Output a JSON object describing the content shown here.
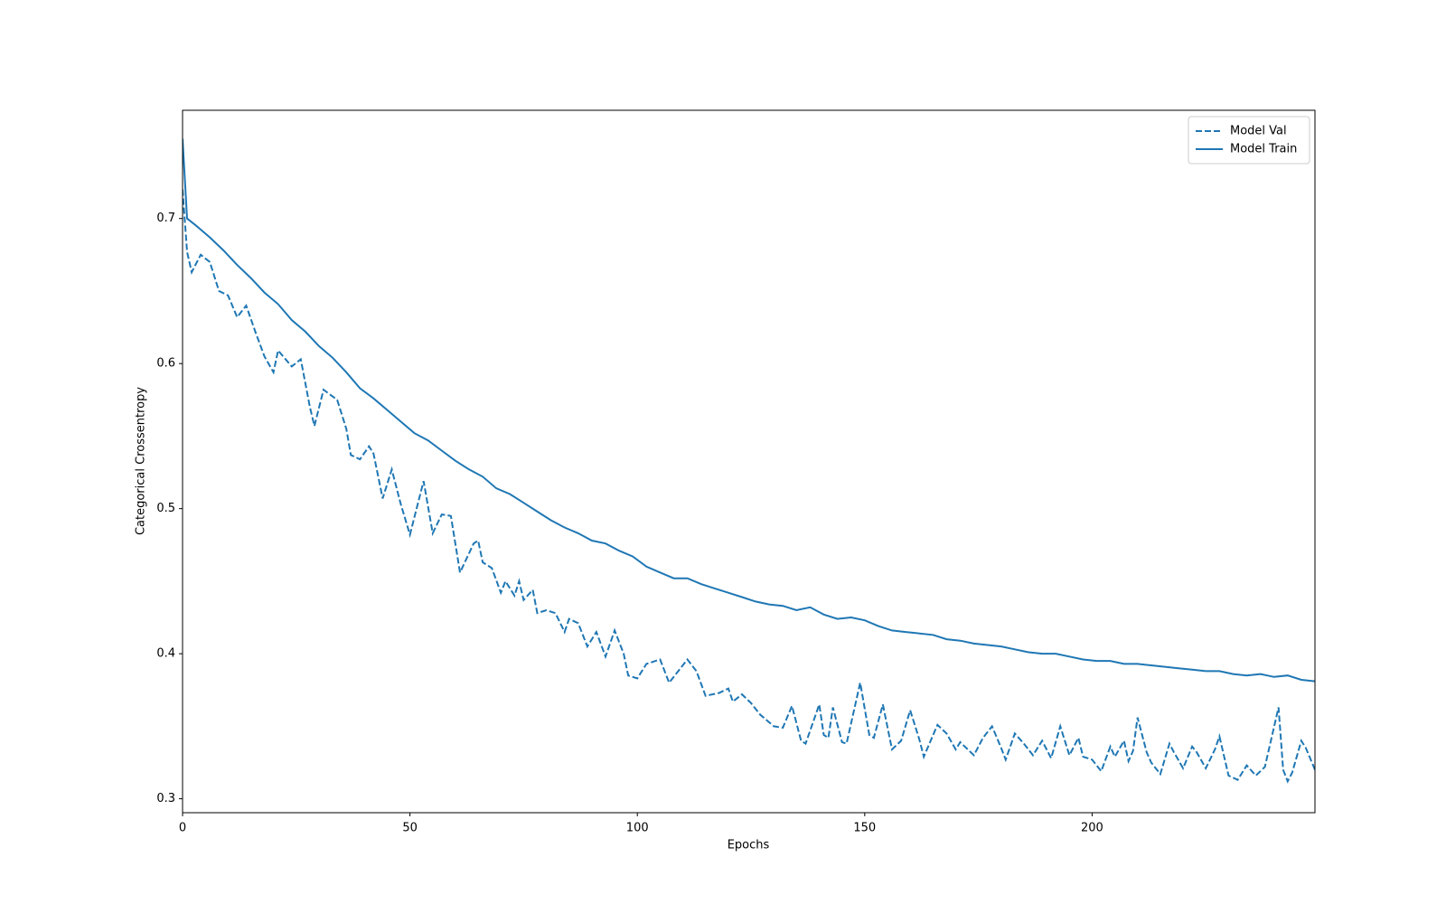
{
  "chart_data": {
    "type": "line",
    "xlabel": "Epochs",
    "ylabel": "Categorical Crossentropy",
    "xlim": [
      0,
      249
    ],
    "ylim": [
      0.2904,
      0.7746
    ],
    "xticks": [
      0,
      50,
      100,
      150,
      200
    ],
    "yticks": [
      0.3,
      0.4,
      0.5,
      0.6,
      0.7
    ],
    "legend": "upper right",
    "series": [
      {
        "name": "Model Val",
        "color": "#1f77b4",
        "linestyle": "dashed",
        "x": [
          0,
          1,
          2,
          4,
          6,
          8,
          10,
          12,
          14,
          16,
          18,
          20,
          21,
          24,
          26,
          28,
          29,
          31,
          34,
          36,
          37,
          39,
          41,
          42,
          44,
          46,
          48,
          50,
          53,
          55,
          57,
          59,
          61,
          64,
          65,
          66,
          68,
          70,
          71,
          73,
          74,
          75,
          77,
          78,
          80,
          82,
          84,
          85,
          87,
          89,
          91,
          93,
          95,
          97,
          98,
          100,
          102,
          105,
          107,
          109,
          111,
          113,
          115,
          118,
          120,
          121,
          123,
          125,
          127,
          130,
          132,
          134,
          136,
          137,
          140,
          141,
          142,
          143,
          145,
          146,
          149,
          151,
          152,
          154,
          156,
          158,
          160,
          162,
          163,
          166,
          168,
          170,
          171,
          174,
          176,
          178,
          180,
          181,
          183,
          185,
          187,
          189,
          191,
          193,
          195,
          197,
          198,
          200,
          202,
          204,
          205,
          207,
          208,
          209,
          210,
          212,
          213,
          215,
          217,
          218,
          220,
          222,
          223,
          225,
          227,
          228,
          230,
          232,
          234,
          236,
          238,
          241,
          242,
          243,
          244,
          246,
          247,
          249
        ],
        "values": [
          0.72,
          0.677,
          0.663,
          0.675,
          0.67,
          0.65,
          0.647,
          0.632,
          0.64,
          0.622,
          0.605,
          0.594,
          0.609,
          0.598,
          0.603,
          0.57,
          0.557,
          0.582,
          0.575,
          0.555,
          0.537,
          0.534,
          0.543,
          0.538,
          0.507,
          0.527,
          0.503,
          0.482,
          0.519,
          0.483,
          0.496,
          0.495,
          0.456,
          0.476,
          0.478,
          0.463,
          0.459,
          0.442,
          0.45,
          0.44,
          0.45,
          0.437,
          0.444,
          0.428,
          0.43,
          0.428,
          0.415,
          0.424,
          0.421,
          0.405,
          0.415,
          0.398,
          0.416,
          0.4,
          0.385,
          0.383,
          0.393,
          0.396,
          0.38,
          0.388,
          0.396,
          0.388,
          0.371,
          0.373,
          0.376,
          0.367,
          0.372,
          0.366,
          0.358,
          0.35,
          0.349,
          0.364,
          0.34,
          0.338,
          0.365,
          0.344,
          0.342,
          0.363,
          0.339,
          0.338,
          0.38,
          0.344,
          0.342,
          0.365,
          0.334,
          0.34,
          0.361,
          0.341,
          0.329,
          0.351,
          0.345,
          0.334,
          0.339,
          0.33,
          0.342,
          0.35,
          0.335,
          0.327,
          0.345,
          0.338,
          0.33,
          0.34,
          0.328,
          0.35,
          0.33,
          0.342,
          0.329,
          0.327,
          0.319,
          0.336,
          0.329,
          0.34,
          0.326,
          0.333,
          0.356,
          0.332,
          0.325,
          0.317,
          0.338,
          0.332,
          0.321,
          0.336,
          0.332,
          0.321,
          0.334,
          0.343,
          0.316,
          0.313,
          0.323,
          0.316,
          0.322,
          0.363,
          0.32,
          0.312,
          0.318,
          0.34,
          0.335,
          0.32
        ]
      },
      {
        "name": "Model Train",
        "color": "#1f77b4",
        "linestyle": "solid",
        "x": [
          0,
          1,
          3,
          6,
          9,
          12,
          15,
          18,
          21,
          24,
          27,
          30,
          33,
          36,
          39,
          42,
          45,
          48,
          51,
          54,
          57,
          60,
          63,
          66,
          69,
          72,
          75,
          78,
          81,
          84,
          87,
          90,
          93,
          96,
          99,
          102,
          105,
          108,
          111,
          114,
          117,
          120,
          123,
          126,
          129,
          132,
          135,
          138,
          141,
          144,
          147,
          150,
          153,
          156,
          159,
          162,
          165,
          168,
          171,
          174,
          177,
          180,
          183,
          186,
          189,
          192,
          195,
          198,
          201,
          204,
          207,
          210,
          213,
          216,
          219,
          222,
          225,
          228,
          231,
          234,
          237,
          240,
          243,
          246,
          249
        ],
        "values": [
          0.755,
          0.7,
          0.695,
          0.687,
          0.678,
          0.668,
          0.659,
          0.649,
          0.641,
          0.63,
          0.622,
          0.612,
          0.604,
          0.594,
          0.583,
          0.576,
          0.568,
          0.56,
          0.552,
          0.547,
          0.54,
          0.533,
          0.527,
          0.522,
          0.514,
          0.51,
          0.504,
          0.498,
          0.492,
          0.487,
          0.483,
          0.478,
          0.476,
          0.471,
          0.467,
          0.46,
          0.456,
          0.452,
          0.452,
          0.448,
          0.445,
          0.442,
          0.439,
          0.436,
          0.434,
          0.433,
          0.43,
          0.432,
          0.427,
          0.424,
          0.425,
          0.423,
          0.419,
          0.416,
          0.415,
          0.414,
          0.413,
          0.41,
          0.409,
          0.407,
          0.406,
          0.405,
          0.403,
          0.401,
          0.4,
          0.4,
          0.398,
          0.396,
          0.395,
          0.395,
          0.393,
          0.393,
          0.392,
          0.391,
          0.39,
          0.389,
          0.388,
          0.388,
          0.386,
          0.385,
          0.386,
          0.384,
          0.385,
          0.382,
          0.381
        ]
      }
    ]
  }
}
